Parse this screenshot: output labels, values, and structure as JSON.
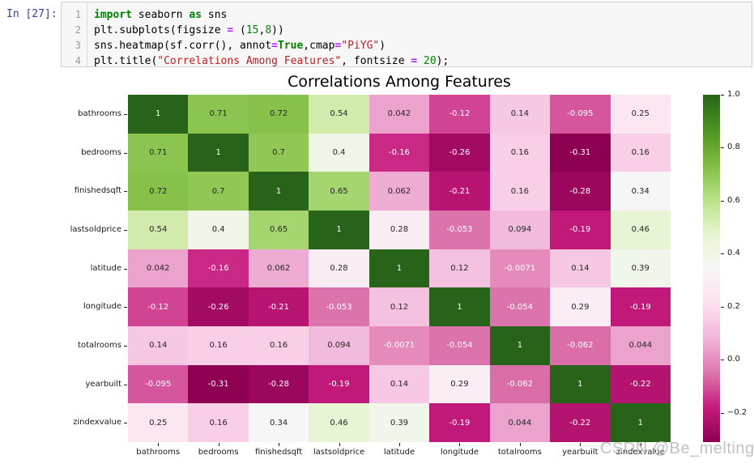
{
  "cell": {
    "prompt": "In [27]:",
    "prompt_color": "#303F9F",
    "lines": [
      {
        "number": "1",
        "tokens": [
          {
            "t": "kw",
            "s": "import"
          },
          {
            "t": "pl",
            "s": " seaborn "
          },
          {
            "t": "kw",
            "s": "as"
          },
          {
            "t": "pl",
            "s": " sns"
          }
        ]
      },
      {
        "number": "2",
        "tokens": [
          {
            "t": "pl",
            "s": "plt.subplots(figsize "
          },
          {
            "t": "op",
            "s": "="
          },
          {
            "t": "pl",
            "s": " ("
          },
          {
            "t": "num",
            "s": "15"
          },
          {
            "t": "pl",
            "s": ","
          },
          {
            "t": "num",
            "s": "8"
          },
          {
            "t": "pl",
            "s": "))"
          }
        ]
      },
      {
        "number": "3",
        "tokens": [
          {
            "t": "pl",
            "s": "sns.heatmap(sf.corr(), annot"
          },
          {
            "t": "op",
            "s": "="
          },
          {
            "t": "kw",
            "s": "True"
          },
          {
            "t": "pl",
            "s": ",cmap"
          },
          {
            "t": "op",
            "s": "="
          },
          {
            "t": "str",
            "s": "\"PiYG\""
          },
          {
            "t": "pl",
            "s": ")"
          }
        ]
      },
      {
        "number": "4",
        "tokens": [
          {
            "t": "pl",
            "s": "plt.title("
          },
          {
            "t": "str",
            "s": "\"Correlations Among Features\""
          },
          {
            "t": "pl",
            "s": ", fontsize "
          },
          {
            "t": "op",
            "s": "="
          },
          {
            "t": "pl",
            "s": " "
          },
          {
            "t": "num",
            "s": "20"
          },
          {
            "t": "pl",
            "s": ");"
          }
        ]
      }
    ],
    "syntax_colors": {
      "keyword": "#008000",
      "number": "#088000",
      "string": "#BA2121",
      "operator": "#AA22FF",
      "plain": "#000000"
    }
  },
  "figure": {
    "title": "Correlations Among Features"
  },
  "chart_data": {
    "type": "heatmap",
    "title": "Correlations Among Features",
    "categories": [
      "bathrooms",
      "bedrooms",
      "finishedsqft",
      "lastsoldprice",
      "latitude",
      "longitude",
      "totalrooms",
      "yearbuilt",
      "zindexvalue"
    ],
    "values": [
      [
        1,
        0.71,
        0.72,
        0.54,
        0.042,
        -0.12,
        0.14,
        -0.095,
        0.25
      ],
      [
        0.71,
        1,
        0.7,
        0.4,
        -0.16,
        -0.26,
        0.16,
        -0.31,
        0.16
      ],
      [
        0.72,
        0.7,
        1,
        0.65,
        0.062,
        -0.21,
        0.16,
        -0.28,
        0.34
      ],
      [
        0.54,
        0.4,
        0.65,
        1,
        0.28,
        -0.053,
        0.094,
        -0.19,
        0.46
      ],
      [
        0.042,
        -0.16,
        0.062,
        0.28,
        1,
        0.12,
        -0.0071,
        0.14,
        0.39
      ],
      [
        -0.12,
        -0.26,
        -0.21,
        -0.053,
        0.12,
        1,
        -0.054,
        0.29,
        -0.19
      ],
      [
        0.14,
        0.16,
        0.16,
        0.094,
        -0.0071,
        -0.054,
        1,
        -0.062,
        0.044
      ],
      [
        -0.095,
        -0.31,
        -0.28,
        -0.19,
        0.14,
        0.29,
        -0.062,
        1,
        -0.22
      ],
      [
        0.25,
        0.16,
        0.34,
        0.46,
        0.39,
        -0.19,
        0.044,
        -0.22,
        1
      ]
    ],
    "annotations": [
      [
        "1",
        "0.71",
        "0.72",
        "0.54",
        "0.042",
        "-0.12",
        "0.14",
        "-0.095",
        "0.25"
      ],
      [
        "0.71",
        "1",
        "0.7",
        "0.4",
        "-0.16",
        "-0.26",
        "0.16",
        "-0.31",
        "0.16"
      ],
      [
        "0.72",
        "0.7",
        "1",
        "0.65",
        "0.062",
        "-0.21",
        "0.16",
        "-0.28",
        "0.34"
      ],
      [
        "0.54",
        "0.4",
        "0.65",
        "1",
        "0.28",
        "-0.053",
        "0.094",
        "-0.19",
        "0.46"
      ],
      [
        "0.042",
        "-0.16",
        "0.062",
        "0.28",
        "1",
        "0.12",
        "-0.0071",
        "0.14",
        "0.39"
      ],
      [
        "-0.12",
        "-0.26",
        "-0.21",
        "-0.053",
        "0.12",
        "1",
        "-0.054",
        "0.29",
        "-0.19"
      ],
      [
        "0.14",
        "0.16",
        "0.16",
        "0.094",
        "-0.0071",
        "-0.054",
        "1",
        "-0.062",
        "0.044"
      ],
      [
        "-0.095",
        "-0.31",
        "-0.28",
        "-0.19",
        "0.14",
        "0.29",
        "-0.062",
        "1",
        "-0.22"
      ],
      [
        "0.25",
        "0.16",
        "0.34",
        "0.46",
        "0.39",
        "-0.19",
        "0.044",
        "-0.22",
        "1"
      ]
    ],
    "colormap": {
      "name": "PiYG",
      "anchors": [
        "#8e0152",
        "#c51b7d",
        "#de77ae",
        "#f1b6da",
        "#fde0ef",
        "#f7f7f7",
        "#e6f5d0",
        "#b8e186",
        "#7fbc41",
        "#4d9221",
        "#276419"
      ]
    },
    "vmin": -0.31,
    "vmax": 1.0,
    "legend_position": "right",
    "grid": false,
    "colorbar_tick_labels": [
      "1.0",
      "0.8",
      "0.6",
      "0.4",
      "0.2",
      "0.0",
      "−0.2"
    ],
    "colorbar_tick_values": [
      1.0,
      0.8,
      0.6,
      0.4,
      0.2,
      0.0,
      -0.2
    ],
    "annotation_text_colors": {
      "light": "#ffffff",
      "dark": "#262626"
    }
  },
  "watermark": {
    "text": "CSDN @Be_melting",
    "color": "#bcbcbc"
  }
}
